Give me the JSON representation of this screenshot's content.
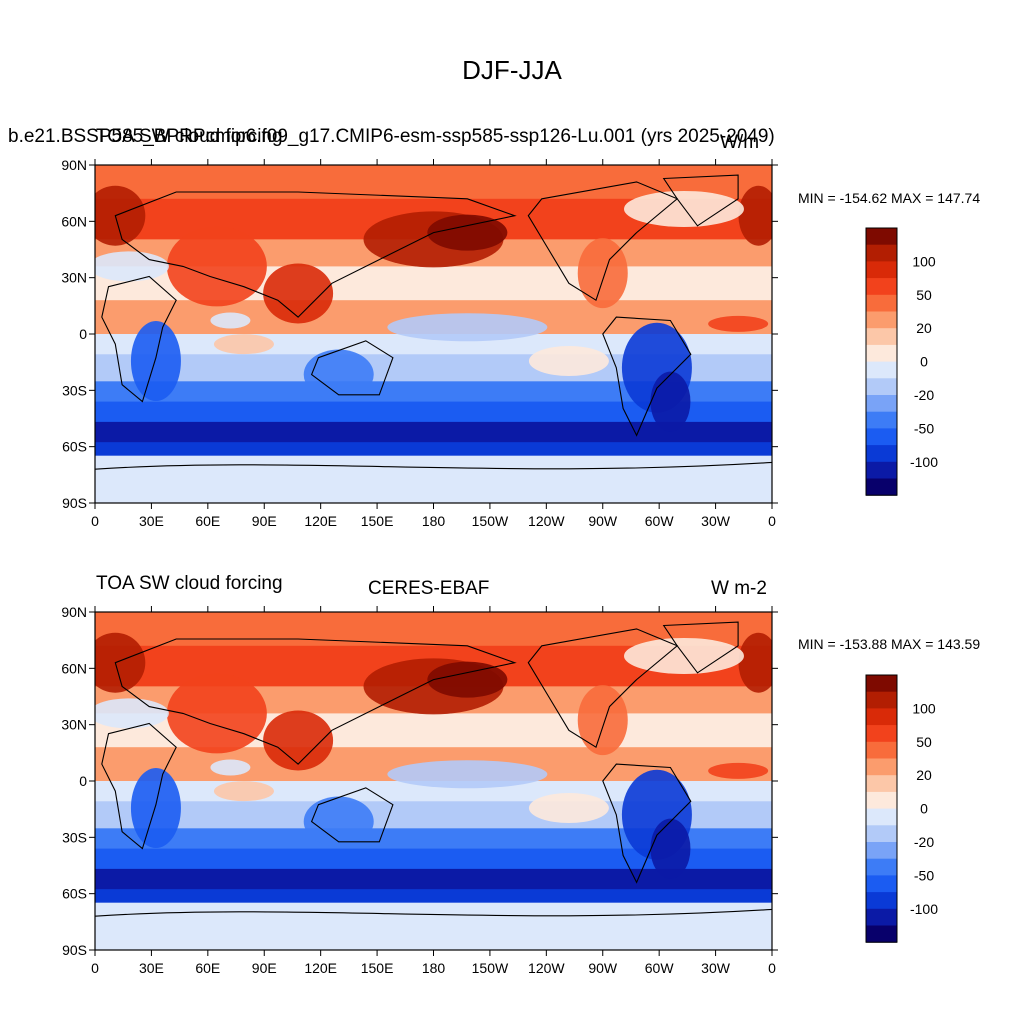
{
  "title": "DJF-JJA",
  "colors": [
    "#08006b",
    "#0b1aa6",
    "#0a3ad6",
    "#1b5cf2",
    "#3d7cf6",
    "#79a3f7",
    "#b2caf8",
    "#dce8fb",
    "#fde9dc",
    "#fcc7a8",
    "#fb9c6d",
    "#f86c3b",
    "#f2421c",
    "#d92a08",
    "#b21e02",
    "#7e0a00"
  ],
  "colorbar": {
    "labels": [
      "100",
      "50",
      "20",
      "0",
      "-20",
      "-50",
      "-100"
    ]
  },
  "panels": [
    {
      "left_title": "b.e21.BSSP585_BPRPcmip6.f09_g17.CMIP6-esm-ssp585-ssp126-Lu.001 (yrs 2025-2049)",
      "left_title_overlap": "TOA SW cloud forcing",
      "right_title": "W/m",
      "min_max": "MIN = -154.62 MAX = 147.74"
    },
    {
      "left_title": "TOA SW cloud forcing",
      "center_title": "CERES-EBAF",
      "right_title": "W m-2",
      "min_max": "MIN = -153.88 MAX = 143.59"
    }
  ],
  "axes": {
    "x_ticks": [
      "0",
      "30E",
      "60E",
      "90E",
      "120E",
      "150E",
      "180",
      "150W",
      "120W",
      "90W",
      "60W",
      "30W",
      "0"
    ],
    "y_ticks": [
      "90N",
      "60N",
      "30N",
      "0",
      "30S",
      "60S",
      "90S"
    ]
  }
}
